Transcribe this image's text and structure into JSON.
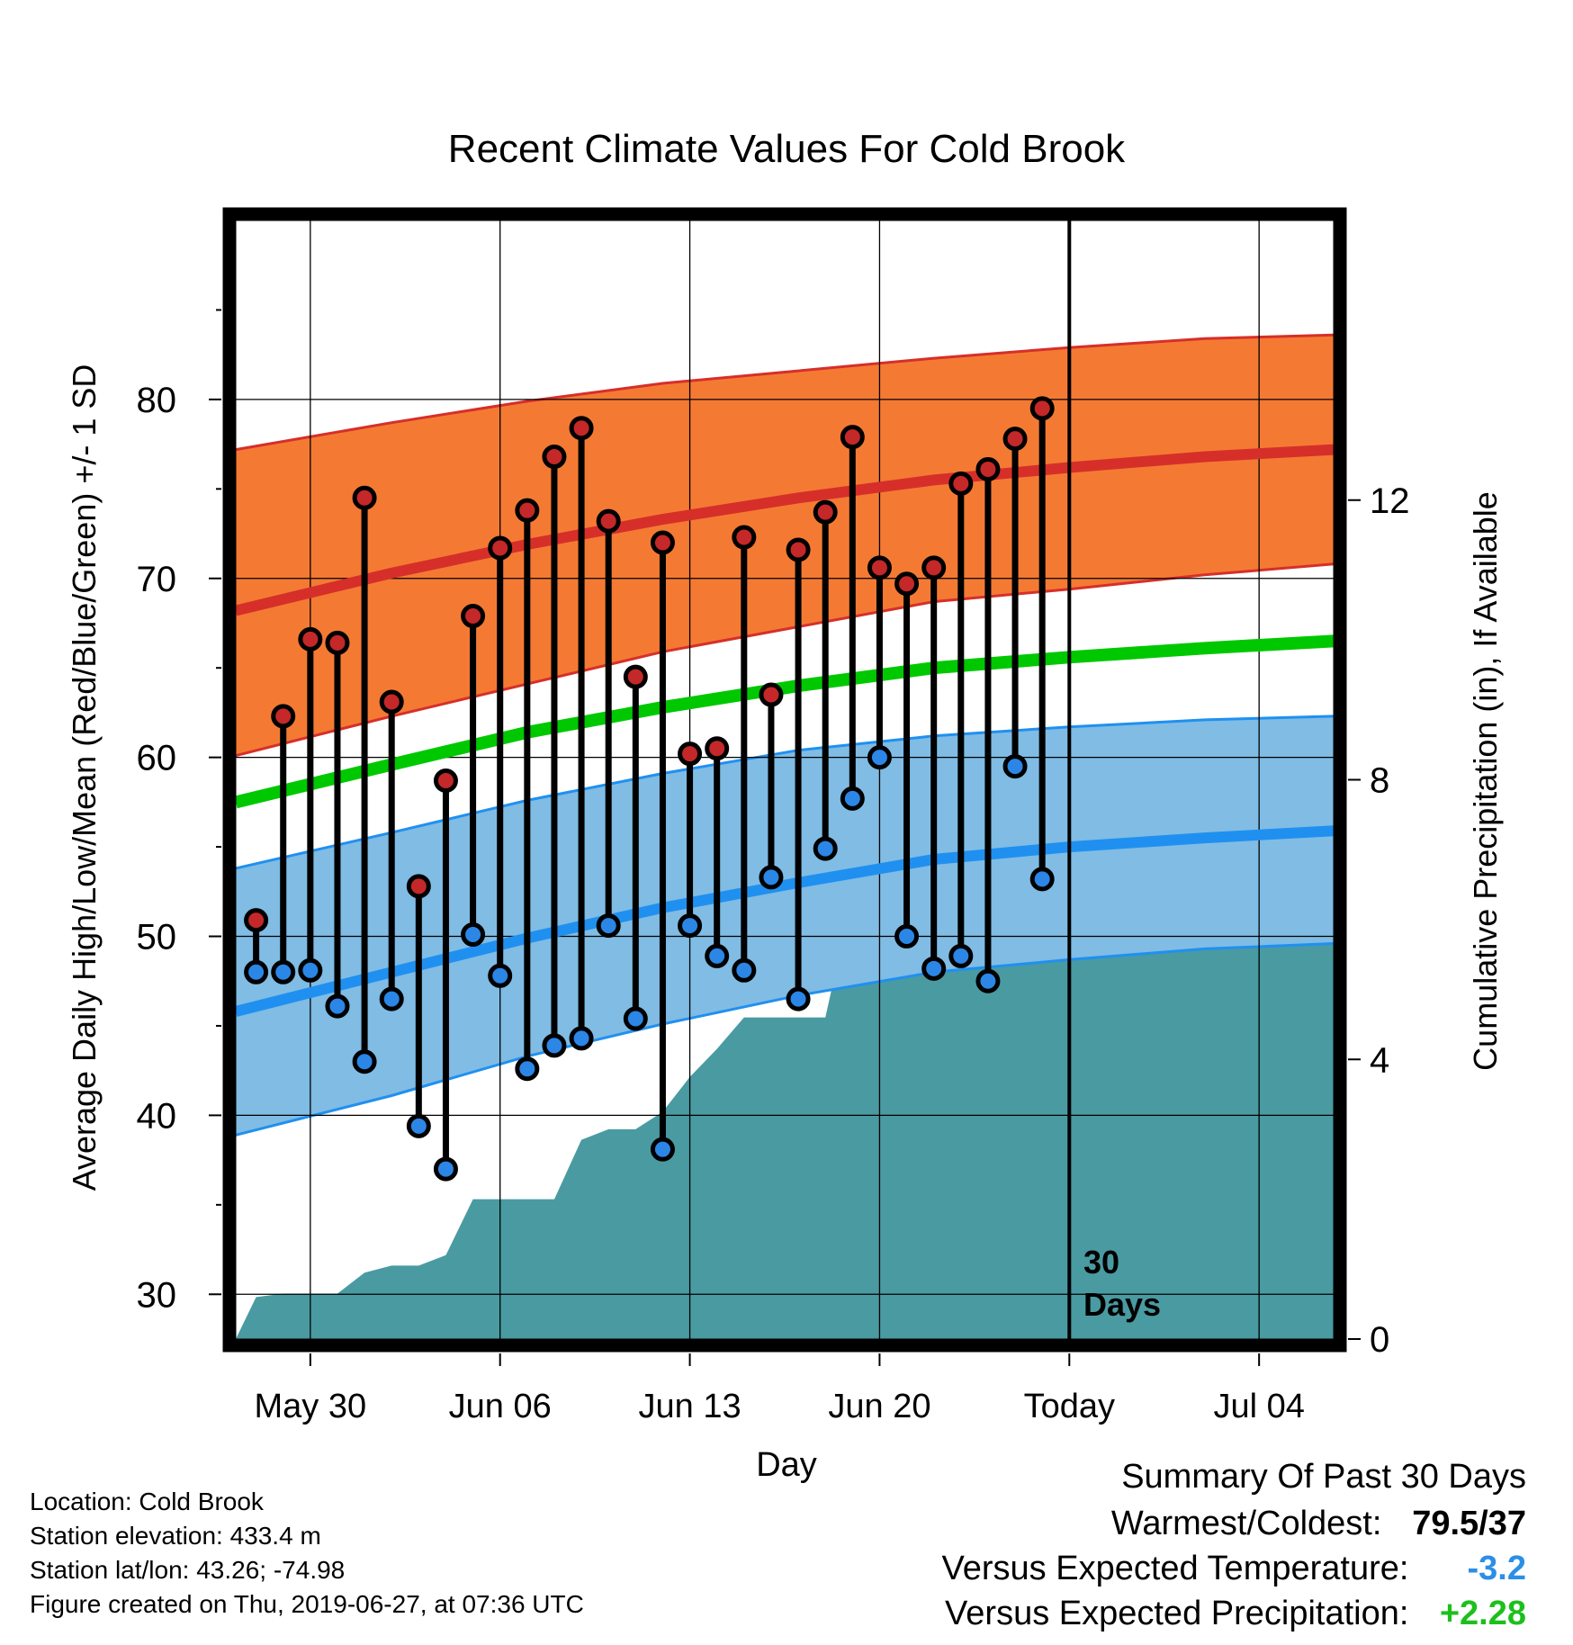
{
  "chart_data": {
    "type": "line",
    "title": "Recent Climate Values For Cold Brook",
    "xlabel": "Day",
    "ylabel_left": "Average Daily High/Low/Mean (Red/Blue/Green) +/- 1 SD",
    "ylabel_right": "Cumulative Precipitation (in), If Available",
    "x_ticks": [
      {
        "day": 2,
        "label": "May 30"
      },
      {
        "day": 9,
        "label": "Jun 06"
      },
      {
        "day": 16,
        "label": "Jun 13"
      },
      {
        "day": 23,
        "label": "Jun 20"
      },
      {
        "day": 30,
        "label": "Today"
      },
      {
        "day": 37,
        "label": "Jul 04"
      }
    ],
    "x_range_days": [
      -0.75,
      39.75
    ],
    "y_left_range": [
      27.5,
      90
    ],
    "y_left_ticks": [
      30,
      40,
      50,
      60,
      70,
      80
    ],
    "y_right_range": [
      0,
      16
    ],
    "y_right_ticks": [
      0,
      4,
      8,
      12
    ],
    "today_day": 30,
    "today_label_line1": "30",
    "today_label_line2": "Days",
    "grid": true,
    "observed": [
      {
        "date": "May 28",
        "high": 50.9,
        "low": 48.0
      },
      {
        "date": "May 29",
        "high": 62.3,
        "low": 48.0
      },
      {
        "date": "May 30",
        "high": 66.6,
        "low": 48.1
      },
      {
        "date": "May 31",
        "high": 66.4,
        "low": 46.1
      },
      {
        "date": "Jun 01",
        "high": 74.5,
        "low": 43.0
      },
      {
        "date": "Jun 02",
        "high": 63.1,
        "low": 46.5
      },
      {
        "date": "Jun 03",
        "high": 52.8,
        "low": 39.4
      },
      {
        "date": "Jun 04",
        "high": 58.7,
        "low": 37.0
      },
      {
        "date": "Jun 05",
        "high": 67.9,
        "low": 50.1
      },
      {
        "date": "Jun 06",
        "high": 71.7,
        "low": 47.8
      },
      {
        "date": "Jun 07",
        "high": 73.8,
        "low": 42.6
      },
      {
        "date": "Jun 08",
        "high": 76.8,
        "low": 43.9
      },
      {
        "date": "Jun 09",
        "high": 78.4,
        "low": 44.3
      },
      {
        "date": "Jun 10",
        "high": 73.2,
        "low": 50.6
      },
      {
        "date": "Jun 11",
        "high": 64.5,
        "low": 45.4
      },
      {
        "date": "Jun 12",
        "high": 72.0,
        "low": 38.1
      },
      {
        "date": "Jun 13",
        "high": 60.2,
        "low": 50.6
      },
      {
        "date": "Jun 14",
        "high": 60.5,
        "low": 48.9
      },
      {
        "date": "Jun 15",
        "high": 72.3,
        "low": 48.1
      },
      {
        "date": "Jun 16",
        "high": 63.5,
        "low": 53.3
      },
      {
        "date": "Jun 17",
        "high": 71.6,
        "low": 46.5
      },
      {
        "date": "Jun 18",
        "high": 73.7,
        "low": 54.9
      },
      {
        "date": "Jun 19",
        "high": 77.9,
        "low": 57.7
      },
      {
        "date": "Jun 20",
        "high": 70.6,
        "low": 60.0
      },
      {
        "date": "Jun 21",
        "high": 69.7,
        "low": 50.0
      },
      {
        "date": "Jun 22",
        "high": 70.6,
        "low": 48.2
      },
      {
        "date": "Jun 23",
        "high": 75.3,
        "low": 48.9
      },
      {
        "date": "Jun 24",
        "high": 76.1,
        "low": 47.5
      },
      {
        "date": "Jun 25",
        "high": 77.8,
        "low": 59.5
      },
      {
        "date": "Jun 26",
        "high": 79.5,
        "low": 53.2
      }
    ],
    "normals": {
      "days": [
        -0.75,
        5,
        10,
        15,
        20,
        25,
        30,
        35,
        39.75
      ],
      "high_mean": [
        68.2,
        70.3,
        71.9,
        73.3,
        74.5,
        75.5,
        76.2,
        76.8,
        77.2
      ],
      "high_sd_upper": [
        77.2,
        78.7,
        79.9,
        80.9,
        81.6,
        82.3,
        82.9,
        83.4,
        83.6
      ],
      "high_sd_lower": [
        60.1,
        62.3,
        64.1,
        65.9,
        67.3,
        68.7,
        69.4,
        70.2,
        70.8
      ],
      "mean": [
        57.5,
        59.6,
        61.4,
        62.8,
        64.0,
        65.0,
        65.6,
        66.1,
        66.5
      ],
      "low_mean": [
        45.8,
        48.0,
        49.9,
        51.6,
        53.0,
        54.3,
        55.0,
        55.5,
        55.9
      ],
      "low_sd_upper": [
        53.8,
        55.8,
        57.6,
        59.1,
        60.4,
        61.2,
        61.7,
        62.1,
        62.3
      ],
      "low_sd_lower": [
        38.9,
        41.1,
        43.3,
        45.1,
        46.7,
        48.0,
        48.7,
        49.3,
        49.6
      ]
    },
    "precip_cumulative": {
      "days": [
        -0.75,
        0,
        1,
        2,
        3,
        4,
        5,
        6,
        7,
        8,
        9,
        10,
        11,
        12,
        13,
        14,
        15,
        16,
        17,
        18,
        19,
        20,
        21,
        22,
        23,
        24,
        25,
        26,
        27,
        28,
        29,
        30,
        31,
        39.75
      ],
      "inches": [
        0,
        0.6,
        0.65,
        0.65,
        0.65,
        0.95,
        1.05,
        1.05,
        1.2,
        2.0,
        2.0,
        2.0,
        2.0,
        2.85,
        3.0,
        3.0,
        3.25,
        3.75,
        4.15,
        4.6,
        4.6,
        4.6,
        4.6,
        6.35,
        6.4,
        6.4,
        6.4,
        6.4,
        6.6,
        6.6,
        6.6,
        6.6,
        6.6,
        6.6
      ]
    },
    "colors": {
      "high_band": "#f47a33",
      "high_line": "#d62f2a",
      "low_band": "#80bce4",
      "low_line": "#2090f0",
      "mean_line": "#00c800",
      "precip_fill": "#4a9aa2",
      "high_dot": "#c42828",
      "low_dot": "#2b86e6"
    }
  },
  "station": {
    "location": "Location: Cold Brook",
    "elevation": "Station elevation: 433.4 m",
    "latlon": "Station lat/lon: 43.26; -74.98",
    "created": "Figure created on Thu, 2019-06-27, at 07:36 UTC"
  },
  "summary": {
    "title": "Summary Of Past 30 Days",
    "warm_cold_label": "Warmest/Coldest:",
    "warm_cold_value": "79.5/37",
    "temp_label": "Versus Expected Temperature:",
    "temp_value": "-3.2",
    "temp_color": "#2b8fe8",
    "precip_label": "Versus Expected Precipitation:",
    "precip_value": "+2.28",
    "precip_color": "#1cc01c"
  }
}
